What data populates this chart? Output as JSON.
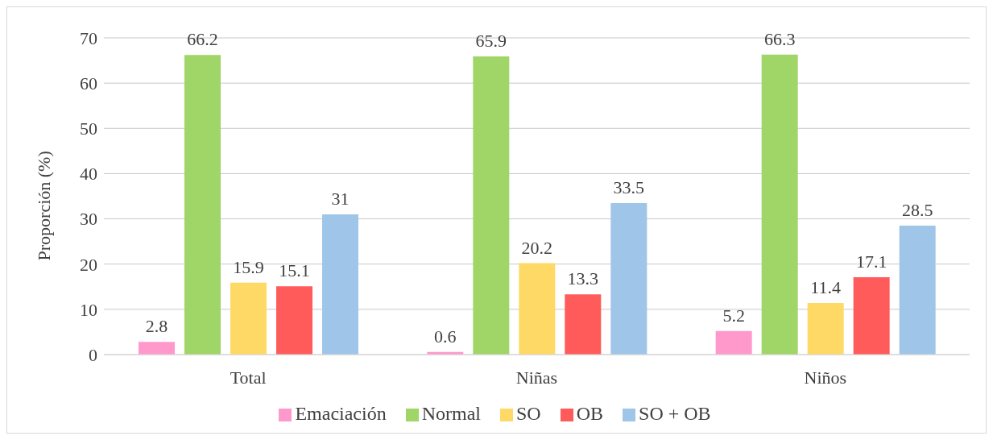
{
  "chart_data": {
    "type": "bar",
    "ylabel": "Proporción (%)",
    "categories": [
      "Total",
      "Niñas",
      "Niños"
    ],
    "series": [
      {
        "name": "Emaciación",
        "color": "#ff99cc",
        "values": [
          2.8,
          0.6,
          5.2
        ]
      },
      {
        "name": "Normal",
        "color": "#a0d568",
        "values": [
          66.2,
          65.9,
          66.3
        ]
      },
      {
        "name": "SO",
        "color": "#ffd966",
        "values": [
          15.9,
          20.2,
          11.4
        ]
      },
      {
        "name": "OB",
        "color": "#ff5b5b",
        "values": [
          15.1,
          13.3,
          17.1
        ]
      },
      {
        "name": "SO + OB",
        "color": "#9fc5e8",
        "values": [
          31,
          33.5,
          28.5
        ]
      }
    ],
    "ylim": [
      0,
      70
    ],
    "yticks": [
      0,
      10,
      20,
      30,
      40,
      50,
      60,
      70
    ],
    "grid": "y",
    "legend": "bottom",
    "data_labels": true
  }
}
